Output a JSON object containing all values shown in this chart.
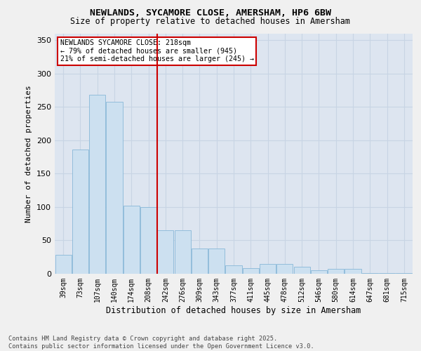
{
  "title_line1": "NEWLANDS, SYCAMORE CLOSE, AMERSHAM, HP6 6BW",
  "title_line2": "Size of property relative to detached houses in Amersham",
  "xlabel": "Distribution of detached houses by size in Amersham",
  "ylabel": "Number of detached properties",
  "categories": [
    "39sqm",
    "73sqm",
    "107sqm",
    "140sqm",
    "174sqm",
    "208sqm",
    "242sqm",
    "276sqm",
    "309sqm",
    "343sqm",
    "377sqm",
    "411sqm",
    "445sqm",
    "478sqm",
    "512sqm",
    "546sqm",
    "580sqm",
    "614sqm",
    "647sqm",
    "681sqm",
    "715sqm"
  ],
  "values": [
    28,
    186,
    268,
    258,
    102,
    100,
    65,
    65,
    38,
    38,
    13,
    8,
    15,
    15,
    10,
    5,
    7,
    7,
    1,
    1,
    1
  ],
  "bar_color": "#cce0f0",
  "bar_edge_color": "#88b8d8",
  "grid_color": "#c8d4e4",
  "background_color": "#dde5f0",
  "vline_color": "#cc0000",
  "annotation_text": "NEWLANDS SYCAMORE CLOSE: 218sqm\n← 79% of detached houses are smaller (945)\n21% of semi-detached houses are larger (245) →",
  "annotation_box_color": "#ffffff",
  "annotation_box_edge": "#cc0000",
  "ylim": [
    0,
    360
  ],
  "yticks": [
    0,
    50,
    100,
    150,
    200,
    250,
    300,
    350
  ],
  "fig_bg": "#f0f0f0",
  "footnote": "Contains HM Land Registry data © Crown copyright and database right 2025.\nContains public sector information licensed under the Open Government Licence v3.0."
}
